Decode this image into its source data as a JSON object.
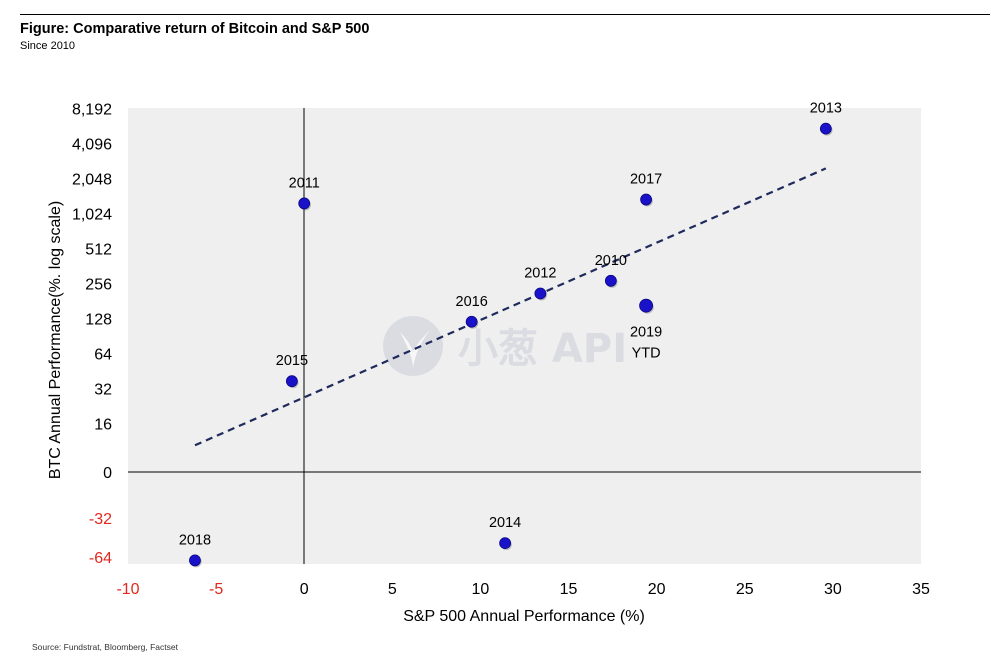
{
  "figure": {
    "title": "Figure: Comparative return of Bitcoin and S&P 500",
    "subtitle": "Since 2010",
    "source": "Source: Fundstrat, Bloomberg, Factset"
  },
  "watermark": {
    "text": "小葱 API"
  },
  "colors": {
    "point": "#1a12c9",
    "trend": "#1f2a5c",
    "negative_tick": "#e0281e",
    "plot_bg": "#efefef"
  },
  "chart_data": {
    "type": "scatter",
    "title": "Comparative return of Bitcoin and S&P 500",
    "xlabel": "S&P 500 Annual Performance (%)",
    "ylabel": "BTC Annual Performance(%. log scale)",
    "xlim": [
      -10,
      35
    ],
    "y_scale": "symmetric-log",
    "ylim": [
      -64,
      8192
    ],
    "grid": false,
    "x_ticks": [
      {
        "value": -10,
        "label": "-10"
      },
      {
        "value": -5,
        "label": "-5"
      },
      {
        "value": 0,
        "label": "0"
      },
      {
        "value": 5,
        "label": "5"
      },
      {
        "value": 10,
        "label": "10"
      },
      {
        "value": 15,
        "label": "15"
      },
      {
        "value": 20,
        "label": "20"
      },
      {
        "value": 25,
        "label": "25"
      },
      {
        "value": 30,
        "label": "30"
      },
      {
        "value": 35,
        "label": "35"
      }
    ],
    "y_ticks": [
      {
        "value": 8192,
        "label": "8,192"
      },
      {
        "value": 4096,
        "label": "4,096"
      },
      {
        "value": 2048,
        "label": "2,048"
      },
      {
        "value": 1024,
        "label": "1,024"
      },
      {
        "value": 512,
        "label": "512"
      },
      {
        "value": 256,
        "label": "256"
      },
      {
        "value": 128,
        "label": "128"
      },
      {
        "value": 64,
        "label": "64"
      },
      {
        "value": 32,
        "label": "32"
      },
      {
        "value": 16,
        "label": "16"
      },
      {
        "value": 0,
        "label": "0"
      },
      {
        "value": -32,
        "label": "-32"
      },
      {
        "value": -64,
        "label": "-64"
      }
    ],
    "points": [
      {
        "label": "2013",
        "x": 29.6,
        "y": 5500
      },
      {
        "label": "2017",
        "x": 19.4,
        "y": 1350
      },
      {
        "label": "2011",
        "x": 0.0,
        "y": 1250
      },
      {
        "label": "2010",
        "x": 17.4,
        "y": 270
      },
      {
        "label": "2012",
        "x": 13.4,
        "y": 210
      },
      {
        "label": "2019 YTD",
        "label_lines": [
          "2019",
          "YTD"
        ],
        "x": 19.4,
        "y": 165,
        "highlight": true
      },
      {
        "label": "2016",
        "x": 9.5,
        "y": 120
      },
      {
        "label": "2015",
        "x": -0.7,
        "y": 37
      },
      {
        "label": "2014",
        "x": 11.4,
        "y": -50
      },
      {
        "label": "2018",
        "x": -6.2,
        "y": -68
      }
    ],
    "trendline": {
      "style": "dashed",
      "from": {
        "x": -6.2,
        "y": 4.6
      },
      "to": {
        "x": 29.6,
        "y": 2500
      }
    }
  }
}
